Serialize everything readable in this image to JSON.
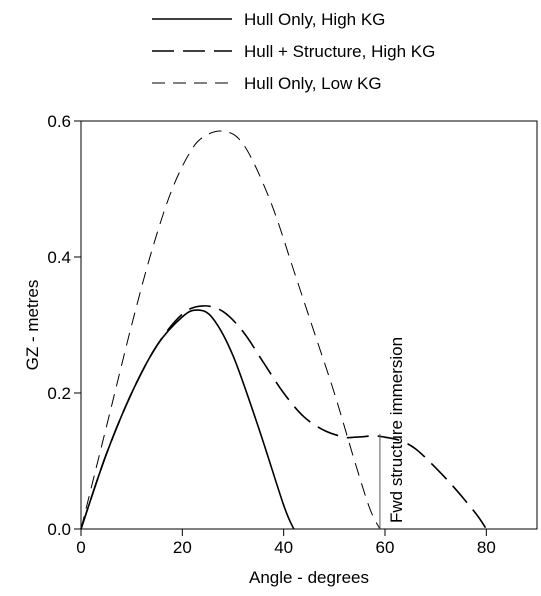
{
  "chart_data": {
    "type": "line",
    "xlabel": "Angle - degrees",
    "ylabel": "GZ - metres",
    "xlim": [
      0,
      90
    ],
    "ylim": [
      0,
      0.6
    ],
    "xticks": [
      "0",
      "20",
      "40",
      "60",
      "80"
    ],
    "yticks": [
      "0.0",
      "0.2",
      "0.4",
      "0.6"
    ],
    "grid": false,
    "legend_position": "top",
    "annotation": {
      "text": "Fwd structure immersion",
      "x": 59,
      "y_range": [
        0,
        0.14
      ]
    },
    "series": [
      {
        "name": "Hull Only, High KG",
        "dash": "solid",
        "x": [
          0,
          5,
          10,
          15,
          20,
          23,
          26,
          30,
          35,
          40,
          42
        ],
        "y": [
          0,
          0.11,
          0.2,
          0.27,
          0.312,
          0.322,
          0.31,
          0.255,
          0.15,
          0.035,
          0
        ]
      },
      {
        "name": "Hull + Structure, High KG",
        "dash": "long",
        "x": [
          0,
          5,
          10,
          15,
          20,
          24,
          28,
          32,
          36,
          40,
          44,
          48,
          52,
          54,
          56,
          58,
          60,
          63,
          66,
          70,
          74,
          78,
          80
        ],
        "y": [
          0,
          0.11,
          0.2,
          0.27,
          0.316,
          0.328,
          0.32,
          0.29,
          0.245,
          0.2,
          0.165,
          0.145,
          0.135,
          0.135,
          0.136,
          0.137,
          0.135,
          0.13,
          0.118,
          0.09,
          0.058,
          0.022,
          0
        ]
      },
      {
        "name": "Hull Only, Low KG",
        "dash": "short",
        "x": [
          0,
          3,
          6,
          10,
          14,
          18,
          22,
          25,
          28,
          31,
          34,
          38,
          42,
          46,
          50,
          54,
          57,
          59
        ],
        "y": [
          0,
          0.09,
          0.18,
          0.3,
          0.41,
          0.5,
          0.56,
          0.58,
          0.585,
          0.575,
          0.54,
          0.47,
          0.38,
          0.29,
          0.2,
          0.1,
          0.03,
          0
        ]
      }
    ]
  }
}
